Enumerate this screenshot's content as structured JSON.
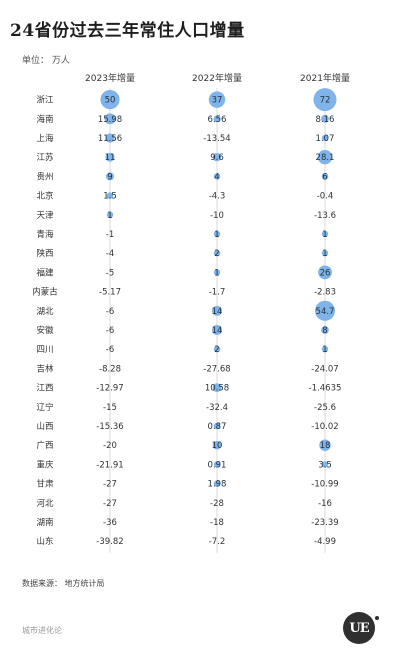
{
  "title": "24省份过去三年常住人口增量",
  "unit_label": "单位：  万人",
  "source_label": "数据来源：  地方统计局",
  "brand_text": "城市进化论",
  "logo_text": "UE",
  "colors": {
    "bubble": "#7fb3ea",
    "grid": "#d9d9d9",
    "row_alt": "#f7f7f7"
  },
  "chart_data": {
    "type": "table",
    "title": "24省份过去三年常住人口增量",
    "unit": "万人",
    "columns": [
      "2023年增量",
      "2022年增量",
      "2021年增量"
    ],
    "rows": [
      {
        "province": "浙江",
        "values": [
          "50",
          "37",
          "72"
        ]
      },
      {
        "province": "海南",
        "values": [
          "15.98",
          "6.56",
          "8.16"
        ]
      },
      {
        "province": "上海",
        "values": [
          "11.56",
          "-13.54",
          "1.07"
        ]
      },
      {
        "province": "江苏",
        "values": [
          "11",
          "9.6",
          "28.1"
        ]
      },
      {
        "province": "贵州",
        "values": [
          "9",
          "4",
          "6"
        ]
      },
      {
        "province": "北京",
        "values": [
          "1.5",
          "-4.3",
          "-0.4"
        ]
      },
      {
        "province": "天津",
        "values": [
          "1",
          "-10",
          "-13.6"
        ]
      },
      {
        "province": "青海",
        "values": [
          "-1",
          "1",
          "1"
        ]
      },
      {
        "province": "陕西",
        "values": [
          "-4",
          "2",
          "1"
        ]
      },
      {
        "province": "福建",
        "values": [
          "-5",
          "1",
          "26"
        ]
      },
      {
        "province": "内蒙古",
        "values": [
          "-5.17",
          "-1.7",
          "-2.83"
        ]
      },
      {
        "province": "湖北",
        "values": [
          "-6",
          "14",
          "54.7"
        ]
      },
      {
        "province": "安徽",
        "values": [
          "-6",
          "14",
          "8"
        ]
      },
      {
        "province": "四川",
        "values": [
          "-6",
          "2",
          "1"
        ]
      },
      {
        "province": "吉林",
        "values": [
          "-8.28",
          "-27.68",
          "-24.07"
        ]
      },
      {
        "province": "江西",
        "values": [
          "-12.97",
          "10.58",
          "-1.4635"
        ]
      },
      {
        "province": "辽宁",
        "values": [
          "-15",
          "-32.4",
          "-25.6"
        ]
      },
      {
        "province": "山西",
        "values": [
          "-15.36",
          "0.87",
          "-10.02"
        ]
      },
      {
        "province": "广西",
        "values": [
          "-20",
          "10",
          "18"
        ]
      },
      {
        "province": "重庆",
        "values": [
          "-21.91",
          "0.91",
          "3.5"
        ]
      },
      {
        "province": "甘肃",
        "values": [
          "-27",
          "1.98",
          "-10.99"
        ]
      },
      {
        "province": "河北",
        "values": [
          "-27",
          "-28",
          "-16"
        ]
      },
      {
        "province": "湖南",
        "values": [
          "-36",
          "-18",
          "-23.39"
        ]
      },
      {
        "province": "山东",
        "values": [
          "-39.82",
          "-7.2",
          "-4.99"
        ]
      }
    ]
  }
}
